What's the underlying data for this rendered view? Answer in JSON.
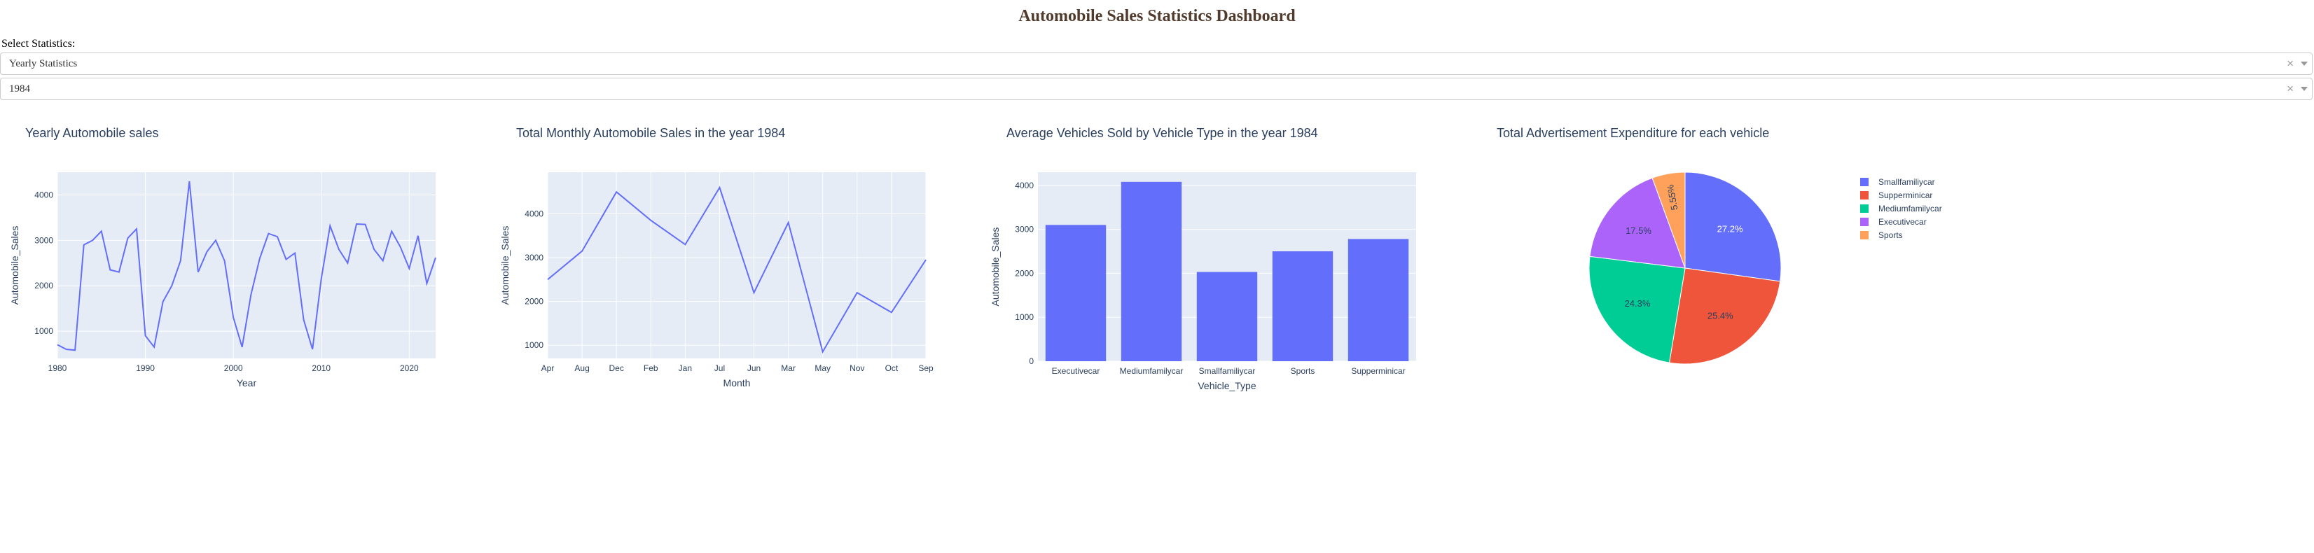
{
  "page": {
    "title": "Automobile Sales Statistics Dashboard"
  },
  "controls": {
    "select_label": "Select Statistics:",
    "statistics_dropdown": {
      "value": "Yearly Statistics"
    },
    "year_dropdown": {
      "value": "1984"
    }
  },
  "colors": {
    "series": "#636efa",
    "plot_bg": "#e5ecf6",
    "title_text": "#2a3f5f"
  },
  "chart_data": [
    {
      "type": "line",
      "title": "Yearly Automobile sales",
      "xlabel": "Year",
      "ylabel": "Automobile_Sales",
      "xlim": [
        1980,
        2023
      ],
      "ylim": [
        400,
        4500
      ],
      "xticks": [
        1980,
        1990,
        2000,
        2010,
        2020
      ],
      "yticks": [
        1000,
        2000,
        3000,
        4000
      ],
      "x": [
        1980,
        1981,
        1982,
        1983,
        1984,
        1985,
        1986,
        1987,
        1988,
        1989,
        1990,
        1991,
        1992,
        1993,
        1994,
        1995,
        1996,
        1997,
        1998,
        1999,
        2000,
        2001,
        2002,
        2003,
        2004,
        2005,
        2006,
        2007,
        2008,
        2009,
        2010,
        2011,
        2012,
        2013,
        2014,
        2015,
        2016,
        2017,
        2018,
        2019,
        2020,
        2021,
        2022,
        2023
      ],
      "values": [
        700,
        600,
        580,
        2900,
        3000,
        3200,
        2350,
        2300,
        3050,
        3250,
        900,
        650,
        1650,
        2000,
        2550,
        4300,
        2300,
        2750,
        3000,
        2550,
        1300,
        650,
        1800,
        2600,
        3150,
        3080,
        2580,
        2720,
        1250,
        600,
        2150,
        3320,
        2800,
        2500,
        3360,
        3350,
        2800,
        2550,
        3200,
        2850,
        2380,
        3100,
        2050,
        2620
      ],
      "grid": true
    },
    {
      "type": "line",
      "title": "Total Monthly Automobile Sales in the year 1984",
      "xlabel": "Month",
      "ylabel": "Automobile_Sales",
      "categories": [
        "Apr",
        "Aug",
        "Dec",
        "Feb",
        "Jan",
        "Jul",
        "Jun",
        "Mar",
        "May",
        "Nov",
        "Oct",
        "Sep"
      ],
      "values": [
        2500,
        3150,
        4500,
        3850,
        3300,
        4600,
        2200,
        3800,
        850,
        2200,
        1750,
        2950
      ],
      "ylim": [
        700,
        4950
      ],
      "yticks": [
        1000,
        2000,
        3000,
        4000
      ],
      "grid": true
    },
    {
      "type": "bar",
      "title": "Average Vehicles Sold by Vehicle Type in the year 1984",
      "xlabel": "Vehicle_Type",
      "ylabel": "Automobile_Sales",
      "categories": [
        "Executivecar",
        "Mediumfamilycar",
        "Smallfamiliycar",
        "Sports",
        "Supperminicar"
      ],
      "values": [
        3100,
        4080,
        2030,
        2500,
        2780
      ],
      "ylim": [
        0,
        4300
      ],
      "yticks": [
        0,
        1000,
        2000,
        3000,
        4000
      ],
      "grid": true
    },
    {
      "type": "pie",
      "title": "Total Advertisement Expenditure for each vehicle",
      "categories": [
        "Smallfamiliycar",
        "Supperminicar",
        "Mediumfamilycar",
        "Executivecar",
        "Sports"
      ],
      "values": [
        27.2,
        25.4,
        24.3,
        17.5,
        5.55
      ],
      "labels": [
        "27.2%",
        "25.4%",
        "24.3%",
        "17.5%",
        "5.55%"
      ],
      "colors": [
        "#636efa",
        "#ef553b",
        "#00cc96",
        "#ab63fa",
        "#ffa15a"
      ],
      "legend": "right"
    }
  ]
}
